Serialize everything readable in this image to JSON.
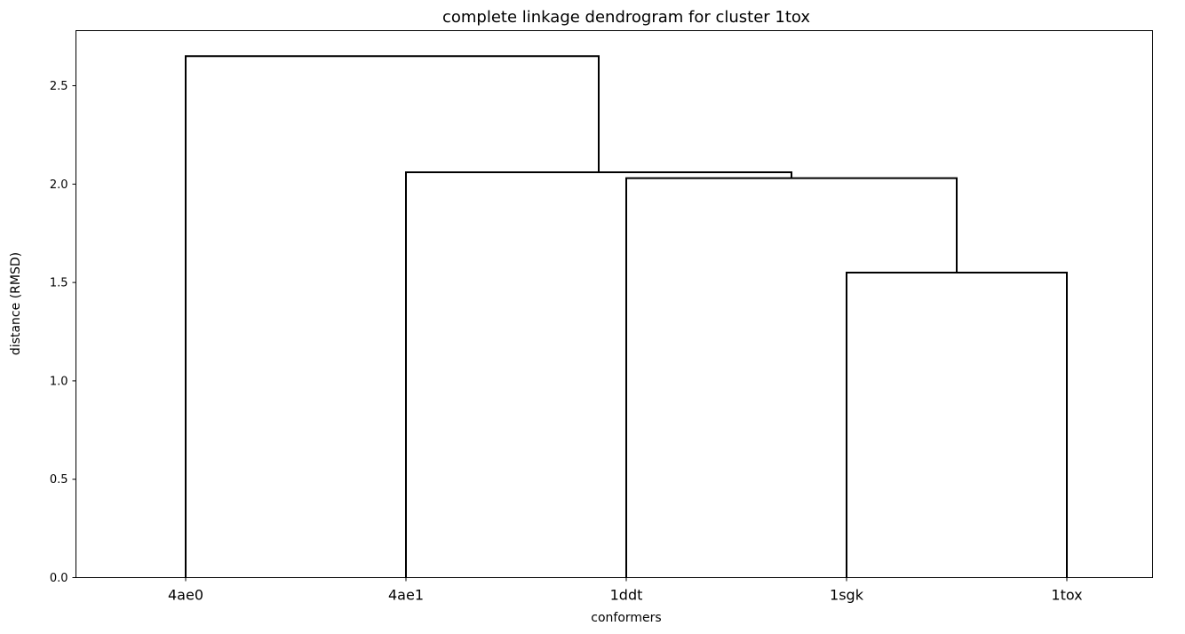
{
  "chart_data": {
    "type": "dendrogram",
    "title": "complete linkage dendrogram for cluster 1tox",
    "xlabel": "conformers",
    "ylabel": "distance (RMSD)",
    "ylim": [
      0,
      2.78
    ],
    "yticks": [
      0.0,
      0.5,
      1.0,
      1.5,
      2.0,
      2.5
    ],
    "ytick_labels": [
      "0.0",
      "0.5",
      "1.0",
      "1.5",
      "2.0",
      "2.5"
    ],
    "leaves": [
      "4ae0",
      "4ae1",
      "1ddt",
      "1sgk",
      "1tox"
    ],
    "merges": [
      {
        "left": "1sgk",
        "right": "1tox",
        "distance": 1.55
      },
      {
        "left": "1ddt",
        "right": "1sgk+1tox",
        "distance": 2.03
      },
      {
        "left": "4ae1",
        "right": "1ddt+1sgk+1tox",
        "distance": 2.06
      },
      {
        "left": "4ae0",
        "right": "4ae1+1ddt+1sgk+1tox",
        "distance": 2.65
      }
    ],
    "grid": false,
    "line_color": "#000000"
  }
}
